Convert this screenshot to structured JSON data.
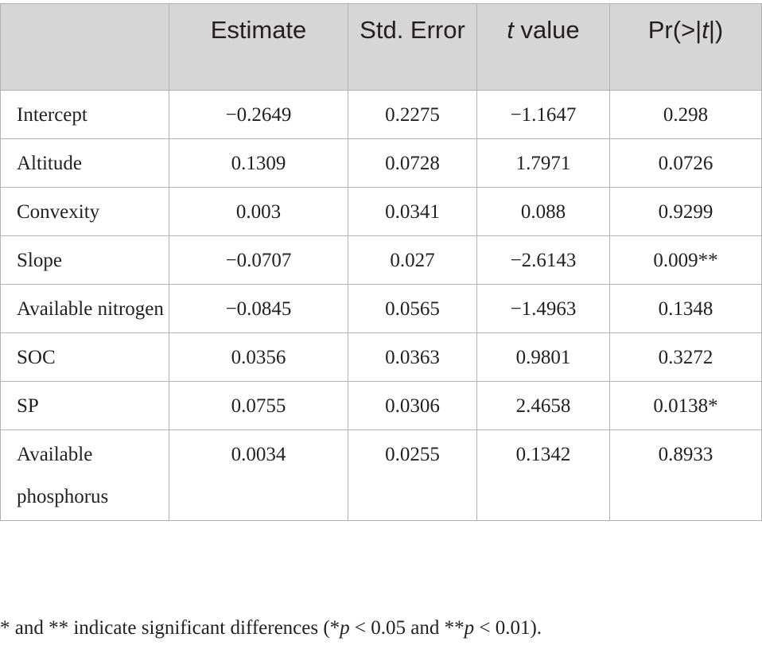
{
  "table": {
    "headers": [
      "",
      "Estimate",
      "Std. Error",
      "t value",
      "Pr(>|t|)"
    ],
    "rows": [
      {
        "label": "Intercept",
        "estimate": "−0.2649",
        "std_error": "0.2275",
        "t_value": "−1.1647",
        "p": "0.298"
      },
      {
        "label": "Altitude",
        "estimate": "0.1309",
        "std_error": "0.0728",
        "t_value": "1.7971",
        "p": "0.0726"
      },
      {
        "label": "Convexity",
        "estimate": "0.003",
        "std_error": "0.0341",
        "t_value": "0.088",
        "p": "0.9299"
      },
      {
        "label": "Slope",
        "estimate": "−0.0707",
        "std_error": "0.027",
        "t_value": "−2.6143",
        "p": "0.009**"
      },
      {
        "label": "Available nitrogen",
        "estimate": "−0.0845",
        "std_error": "0.0565",
        "t_value": "−1.4963",
        "p": "0.1348"
      },
      {
        "label": "SOC",
        "estimate": "0.0356",
        "std_error": "0.0363",
        "t_value": "0.9801",
        "p": "0.3272"
      },
      {
        "label": "SP",
        "estimate": "0.0755",
        "std_error": "0.0306",
        "t_value": "2.4658",
        "p": "0.0138*"
      },
      {
        "label": "Available phosphorus",
        "estimate": "0.0034",
        "std_error": "0.0255",
        "t_value": "0.1342",
        "p": "0.8933"
      }
    ]
  },
  "footnote": {
    "prefix": "* and ** indicate significant differences (*",
    "p1": "p",
    "mid": " < 0.05 and **",
    "p2": "p",
    "suffix": " < 0.01)."
  }
}
